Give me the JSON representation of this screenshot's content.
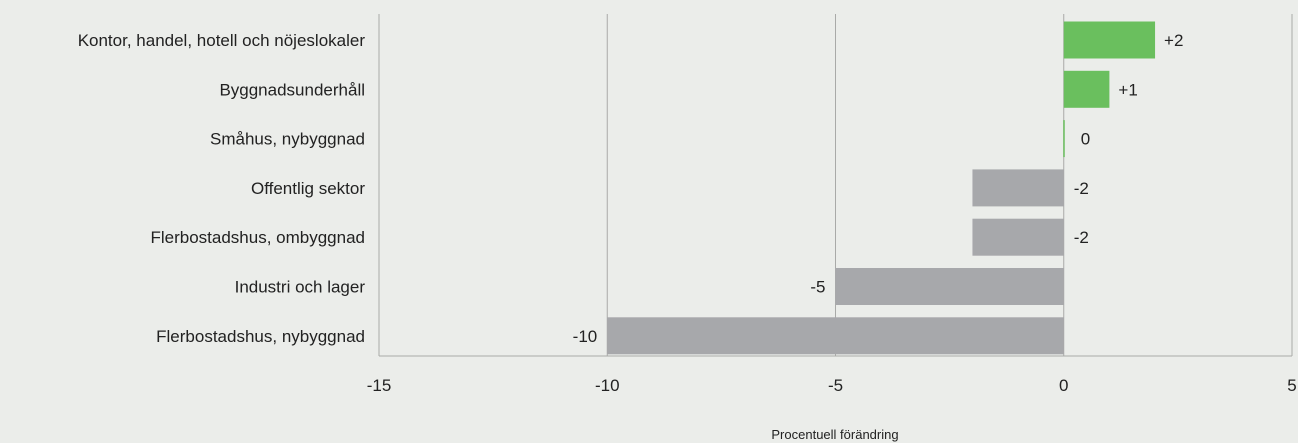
{
  "chart_data": {
    "type": "bar",
    "orientation": "horizontal",
    "categories": [
      "Kontor, handel, hotell och nöjeslokaler",
      "Byggnadsunderhåll",
      "Småhus, nybyggnad",
      "Offentlig sektor",
      "Flerbostadshus, ombyggnad",
      "Industri och lager",
      "Flerbostadshus, nybyggnad"
    ],
    "values": [
      2,
      1,
      0,
      -2,
      -2,
      -5,
      -10
    ],
    "value_labels": [
      "+2",
      "+1",
      "0",
      "-2",
      "-2",
      "-5",
      "-10"
    ],
    "xlabel": "Procentuell förändring",
    "xlim": [
      -15,
      5
    ],
    "xticks": [
      -15,
      -10,
      -5,
      0,
      5
    ],
    "xtick_labels": [
      "-15",
      "-10",
      "-5",
      "0",
      "5"
    ],
    "grid": "vertical",
    "legend": "none",
    "colors": {
      "positive": "#6abf5e",
      "negative": "#a7a8ab",
      "grid": "#a9aaa8",
      "background": "#ebedea"
    }
  }
}
